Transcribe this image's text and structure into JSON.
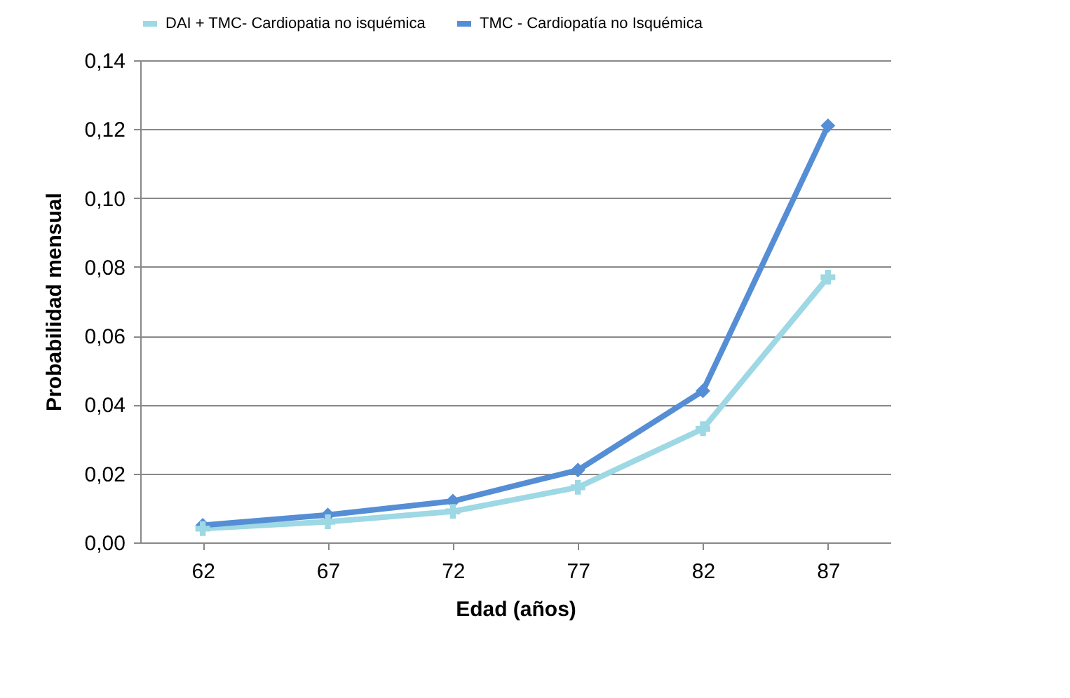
{
  "chart_data": {
    "type": "line",
    "xlabel": "Edad (años)",
    "ylabel": "Probabilidad mensual",
    "categories": [
      "62",
      "67",
      "72",
      "77",
      "82",
      "87"
    ],
    "series": [
      {
        "name": "DAI + TMC- Cardiopatia no isquémica",
        "color": "#9dd8e4",
        "marker": "cross",
        "values": [
          0.004,
          0.006,
          0.009,
          0.016,
          0.033,
          0.077
        ]
      },
      {
        "name": "TMC - Cardiopatía no Isquémica",
        "color": "#558ed5",
        "marker": "diamond",
        "values": [
          0.005,
          0.008,
          0.012,
          0.021,
          0.044,
          0.121
        ]
      }
    ],
    "ylim": [
      0,
      0.14
    ],
    "yticks": [
      {
        "value": 0,
        "label": "0,00"
      },
      {
        "value": 0.02,
        "label": "0,02"
      },
      {
        "value": 0.04,
        "label": "0,04"
      },
      {
        "value": 0.06,
        "label": "0,06"
      },
      {
        "value": 0.08,
        "label": "0,08"
      },
      {
        "value": 0.1,
        "label": "0,10"
      },
      {
        "value": 0.12,
        "label": "0,12"
      },
      {
        "value": 0.14,
        "label": "0,14"
      }
    ],
    "grid": "y",
    "legend": "top"
  }
}
